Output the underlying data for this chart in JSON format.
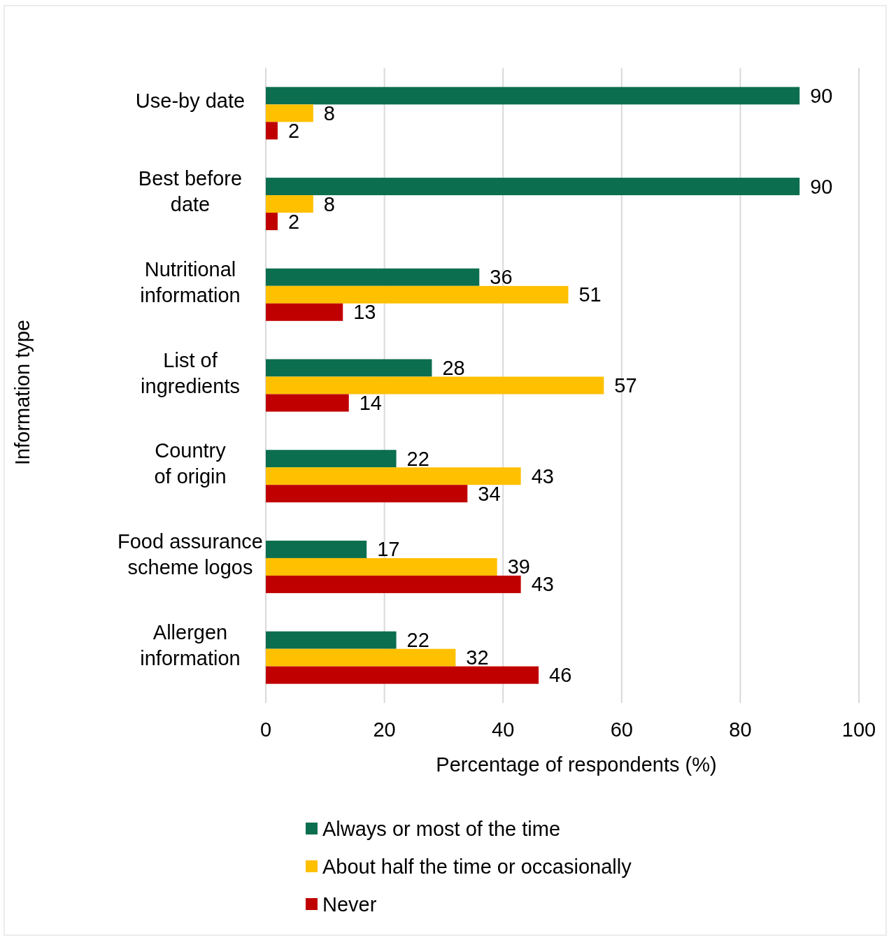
{
  "chart_data": {
    "type": "bar",
    "orientation": "horizontal",
    "xlabel": "Percentage of respondents (%)",
    "ylabel": "Information type",
    "categories": [
      "Use-by date",
      "Best before date",
      "Nutritional information",
      "List of ingredients",
      "Country of origin",
      "Food assurance scheme logos",
      "Allergen information"
    ],
    "series": [
      {
        "name": "Always or most of the time",
        "color": "#0b6e4f",
        "values": [
          90,
          90,
          36,
          28,
          22,
          17,
          22
        ]
      },
      {
        "name": "About half the time or occasionally",
        "color": "#ffc000",
        "values": [
          8,
          8,
          51,
          57,
          43,
          39,
          32
        ]
      },
      {
        "name": "Never",
        "color": "#c00000",
        "values": [
          2,
          2,
          13,
          14,
          34,
          43,
          46
        ]
      }
    ],
    "xlim": [
      0,
      100
    ],
    "xticks": [
      0,
      20,
      40,
      60,
      80,
      100
    ],
    "grid": "x",
    "data_labels": true,
    "legend": "bottom"
  }
}
